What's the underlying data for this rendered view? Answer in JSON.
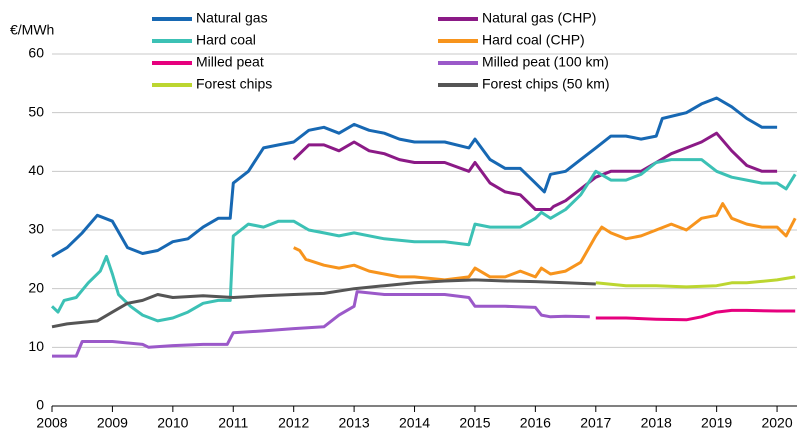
{
  "chart_data": {
    "type": "line",
    "y_label": "€/MWh",
    "xlim": [
      2008,
      2020.33
    ],
    "xticks": [
      2008,
      2009,
      2010,
      2011,
      2012,
      2013,
      2014,
      2015,
      2016,
      2017,
      2018,
      2019,
      2020
    ],
    "ylim": [
      0,
      60
    ],
    "yticks": [
      0,
      10,
      20,
      30,
      40,
      50,
      60
    ],
    "grid": true,
    "series": [
      {
        "name": "Natural gas",
        "color": "#1768b3",
        "x": [
          2008,
          2008.25,
          2008.5,
          2008.75,
          2009,
          2009.25,
          2009.5,
          2009.75,
          2010,
          2010.25,
          2010.5,
          2010.75,
          2010.95,
          2011,
          2011.25,
          2011.5,
          2011.75,
          2012,
          2012.25,
          2012.5,
          2012.75,
          2013,
          2013.25,
          2013.5,
          2013.75,
          2014,
          2014.5,
          2014.9,
          2015,
          2015.25,
          2015.5,
          2015.75,
          2016,
          2016.15,
          2016.25,
          2016.5,
          2016.75,
          2017,
          2017.25,
          2017.5,
          2017.75,
          2018,
          2018.1,
          2018.5,
          2018.75,
          2019,
          2019.25,
          2019.5,
          2019.75,
          2020
        ],
        "values": [
          25.5,
          27,
          29.5,
          32.5,
          31.5,
          27,
          26,
          26.5,
          28,
          28.5,
          30.5,
          32,
          32,
          38,
          40,
          44,
          44.5,
          45,
          47,
          47.5,
          46.5,
          48,
          47,
          46.5,
          45.5,
          45,
          45,
          44,
          45.5,
          42,
          40.5,
          40.5,
          38,
          36.5,
          39.5,
          40,
          42,
          44,
          46,
          46,
          45.5,
          46,
          49,
          50,
          51.5,
          52.5,
          51,
          49,
          47.5,
          47.5
        ]
      },
      {
        "name": "Natural gas (CHP)",
        "color": "#8b1a86",
        "x": [
          2012,
          2012.25,
          2012.5,
          2012.75,
          2013,
          2013.25,
          2013.5,
          2013.75,
          2014,
          2014.5,
          2014.9,
          2015,
          2015.25,
          2015.5,
          2015.75,
          2016,
          2016.25,
          2016.3,
          2016.5,
          2016.75,
          2017,
          2017.25,
          2017.5,
          2017.75,
          2018,
          2018.25,
          2018.5,
          2018.75,
          2019,
          2019.25,
          2019.5,
          2019.75,
          2020
        ],
        "values": [
          42,
          44.5,
          44.5,
          43.5,
          45,
          43.5,
          43,
          42,
          41.5,
          41.5,
          40,
          41.5,
          38,
          36.5,
          36,
          33.5,
          33.5,
          34,
          35,
          37,
          39,
          40,
          40,
          40,
          41.5,
          43,
          44,
          45,
          46.5,
          43.5,
          41,
          40,
          40
        ]
      },
      {
        "name": "Hard coal",
        "color": "#3cc1b5",
        "x": [
          2008,
          2008.1,
          2008.2,
          2008.4,
          2008.6,
          2008.8,
          2008.9,
          2009,
          2009.1,
          2009.3,
          2009.5,
          2009.75,
          2010,
          2010.25,
          2010.5,
          2010.75,
          2010.95,
          2011,
          2011.25,
          2011.5,
          2011.75,
          2012,
          2012.25,
          2012.5,
          2012.75,
          2013,
          2013.5,
          2014,
          2014.5,
          2014.9,
          2015,
          2015.25,
          2015.5,
          2015.75,
          2016,
          2016.1,
          2016.25,
          2016.5,
          2016.75,
          2017,
          2017.25,
          2017.5,
          2017.75,
          2018,
          2018.25,
          2018.5,
          2018.75,
          2019,
          2019.25,
          2019.5,
          2019.75,
          2020,
          2020.15,
          2020.3
        ],
        "values": [
          17,
          16,
          18,
          18.5,
          21,
          23,
          25.5,
          22.5,
          19,
          17,
          15.5,
          14.5,
          15,
          16,
          17.5,
          18,
          18,
          29,
          31,
          30.5,
          31.5,
          31.5,
          30,
          29.5,
          29,
          29.5,
          28.5,
          28,
          28,
          27.5,
          31,
          30.5,
          30.5,
          30.5,
          32,
          33,
          32,
          33.5,
          36,
          40,
          38.5,
          38.5,
          39.5,
          41.5,
          42,
          42,
          42,
          40,
          39,
          38.5,
          38,
          38,
          37,
          39.5
        ]
      },
      {
        "name": "Hard coal (CHP)",
        "color": "#f7941d",
        "x": [
          2012,
          2012.1,
          2012.2,
          2012.5,
          2012.75,
          2013,
          2013.25,
          2013.5,
          2013.75,
          2014,
          2014.5,
          2014.9,
          2015,
          2015.25,
          2015.5,
          2015.75,
          2016,
          2016.1,
          2016.25,
          2016.5,
          2016.75,
          2017,
          2017.1,
          2017.25,
          2017.5,
          2017.75,
          2018,
          2018.25,
          2018.5,
          2018.75,
          2019,
          2019.1,
          2019.25,
          2019.5,
          2019.75,
          2020,
          2020.15,
          2020.3
        ],
        "values": [
          27,
          26.5,
          25,
          24,
          23.5,
          24,
          23,
          22.5,
          22,
          22,
          21.5,
          22,
          23.5,
          22,
          22,
          23,
          22,
          23.5,
          22.5,
          23,
          24.5,
          29,
          30.5,
          29.5,
          28.5,
          29,
          30,
          31,
          30,
          32,
          32.5,
          34.5,
          32,
          31,
          30.5,
          30.5,
          29,
          32
        ]
      },
      {
        "name": "Milled peat",
        "color": "#e6007e",
        "x": [
          2017,
          2017.5,
          2018,
          2018.5,
          2018.75,
          2019,
          2019.25,
          2019.5,
          2020,
          2020.3
        ],
        "values": [
          15,
          15,
          14.8,
          14.7,
          15.2,
          16,
          16.3,
          16.3,
          16.2,
          16.2
        ]
      },
      {
        "name": "Milled peat (100 km)",
        "color": "#9b59c9",
        "x": [
          2008,
          2008.4,
          2008.5,
          2009,
          2009.5,
          2009.6,
          2010,
          2010.5,
          2010.9,
          2011,
          2011.5,
          2012,
          2012.5,
          2012.75,
          2013,
          2013.05,
          2013.5,
          2014,
          2014.5,
          2014.9,
          2015,
          2015.5,
          2016,
          2016.1,
          2016.25,
          2016.5,
          2016.9
        ],
        "values": [
          8.5,
          8.5,
          11,
          11,
          10.5,
          10,
          10.3,
          10.5,
          10.5,
          12.5,
          12.8,
          13.2,
          13.5,
          15.5,
          17,
          19.5,
          19,
          19,
          19,
          18.5,
          17,
          17,
          16.8,
          15.5,
          15.2,
          15.3,
          15.2
        ]
      },
      {
        "name": "Forest chips",
        "color": "#bcd630",
        "x": [
          2017,
          2017.5,
          2018,
          2018.5,
          2019,
          2019.25,
          2019.5,
          2020,
          2020.3
        ],
        "values": [
          21,
          20.5,
          20.5,
          20.3,
          20.5,
          21,
          21,
          21.5,
          22
        ]
      },
      {
        "name": "Forest chips (50 km)",
        "color": "#555555",
        "x": [
          2008,
          2008.25,
          2008.75,
          2009,
          2009.25,
          2009.5,
          2009.75,
          2010,
          2010.5,
          2011,
          2011.5,
          2012,
          2012.5,
          2013,
          2013.5,
          2014,
          2014.5,
          2015,
          2015.5,
          2016,
          2016.5,
          2017
        ],
        "values": [
          13.5,
          14,
          14.5,
          16,
          17.5,
          18,
          19,
          18.5,
          18.8,
          18.5,
          18.8,
          19,
          19.2,
          20,
          20.5,
          21,
          21.3,
          21.5,
          21.3,
          21.2,
          21,
          20.8
        ]
      }
    ]
  }
}
